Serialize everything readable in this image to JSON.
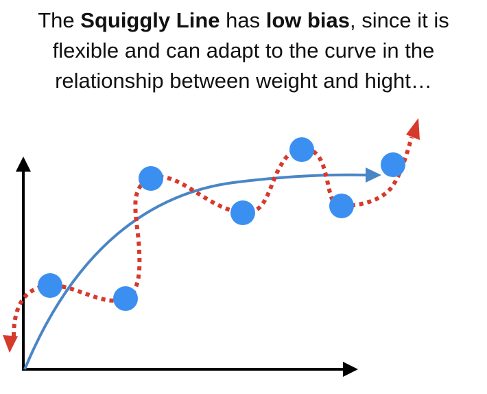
{
  "caption": {
    "line1_a": "The ",
    "line1_b": "Squiggly Line",
    "line1_c": " has ",
    "line1_d": "low bias",
    "line1_e": ", since it is",
    "line2": "flexible and can adapt to the curve in the",
    "line3": "relationship between weight and hight…"
  },
  "colors": {
    "axis": "#000000",
    "points": "#3b8ff0",
    "squiggly_line": "#d63a2c",
    "straight_curve": "#4a86c5"
  },
  "icons": {
    "axes": "axis-arrows",
    "squiggly": "dotted-squiggly-line-arrows",
    "curve": "smooth-curve-arrow"
  }
}
